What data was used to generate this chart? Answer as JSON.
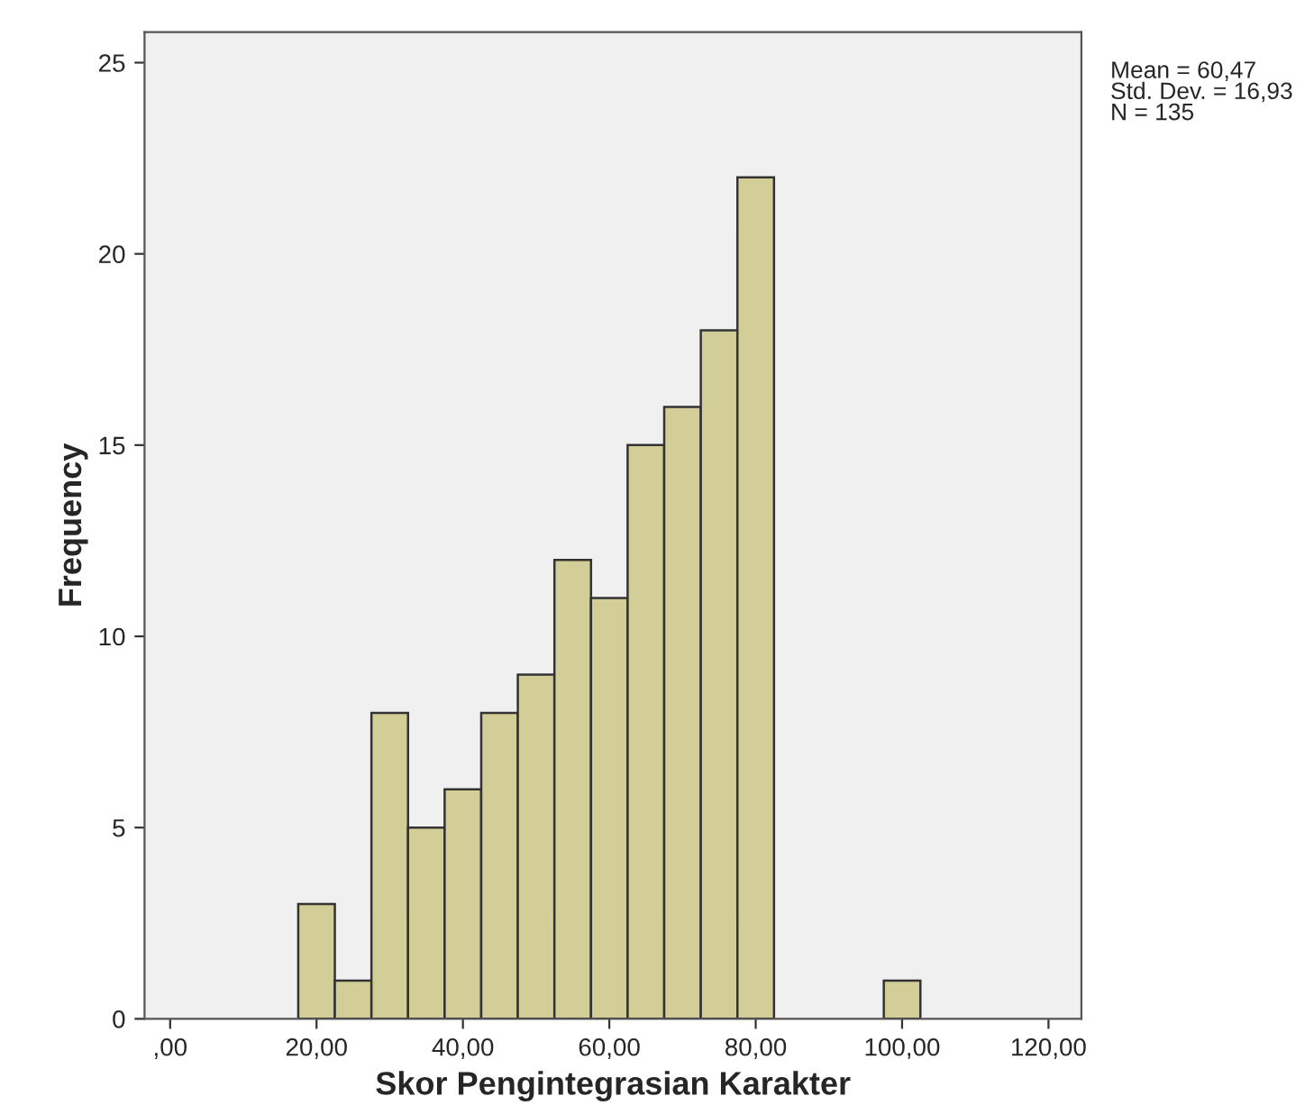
{
  "chart_data": {
    "type": "histogram",
    "xlabel": "Skor Pengintegrasian Karakter",
    "ylabel": "Frequency",
    "bins": [
      17.5,
      22.5,
      27.5,
      32.5,
      37.5,
      42.5,
      47.5,
      52.5,
      57.5,
      62.5,
      67.5,
      72.5,
      77.5,
      82.5,
      87.5,
      92.5,
      97.5,
      102.5
    ],
    "values": [
      3,
      1,
      8,
      5,
      6,
      8,
      9,
      12,
      11,
      15,
      16,
      18,
      22,
      0,
      0,
      0,
      1
    ],
    "color": "#d3ce98",
    "xlim": [
      -3.5,
      124.5
    ],
    "xticks": [
      {
        "value": 0,
        "label": ",00"
      },
      {
        "value": 20,
        "label": "20,00"
      },
      {
        "value": 40,
        "label": "40,00"
      },
      {
        "value": 60,
        "label": "60,00"
      },
      {
        "value": 80,
        "label": "80,00"
      },
      {
        "value": 100,
        "label": "100,00"
      },
      {
        "value": 120,
        "label": "120,00"
      }
    ],
    "ylim": [
      0,
      25.8
    ],
    "yticks": [
      0,
      5,
      10,
      15,
      20,
      25
    ],
    "annotations": [
      "Mean = 60,47",
      "Std. Dev. = 16,93",
      "N = 135"
    ],
    "grid": false,
    "legend": false
  }
}
